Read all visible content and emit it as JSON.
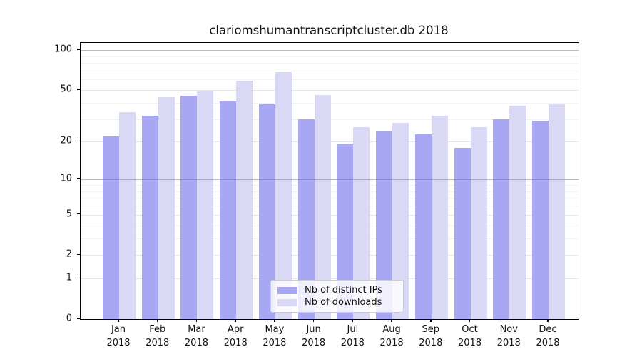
{
  "page": {
    "title": "clariomshumantranscriptcluster.db 2018"
  },
  "chart_data": {
    "type": "bar",
    "title": "clariomshumantranscriptcluster.db 2018",
    "categories": [
      "Jan",
      "Feb",
      "Mar",
      "Apr",
      "May",
      "Jun",
      "Jul",
      "Aug",
      "Sep",
      "Oct",
      "Nov",
      "Dec"
    ],
    "category_sublabel": "2018",
    "series": [
      {
        "name": "Nb of distinct IPs",
        "color": "#a7a7f3",
        "values": [
          22,
          32,
          45,
          41,
          39,
          30,
          19,
          24,
          23,
          18,
          30,
          29
        ]
      },
      {
        "name": "Nb of downloads",
        "color": "#d9d9f6",
        "values": [
          34,
          44,
          49,
          59,
          68,
          46,
          26,
          28,
          32,
          26,
          38,
          39
        ]
      }
    ],
    "yscale": "log1p",
    "yticks": [
      0,
      1,
      2,
      5,
      10,
      20,
      50,
      100
    ],
    "ytick_labels": [
      "0",
      "1",
      "2",
      "5",
      "10",
      "20",
      "50",
      "100"
    ],
    "minor_gridlines": [
      3,
      4,
      6,
      7,
      8,
      9,
      30,
      40,
      60,
      70,
      80,
      90
    ],
    "emphasized_gridlines": [
      10,
      100
    ],
    "ylim": [
      0,
      115
    ],
    "grid": true,
    "legend_position": "bottom-center",
    "colors": {
      "axis": "#000000",
      "grid_major": "#e6e6e6",
      "grid_minor": "#f2f2f2",
      "grid_emphasized": "rgba(120,120,120,0.5)",
      "text": "#111111",
      "background": "#ffffff"
    }
  }
}
